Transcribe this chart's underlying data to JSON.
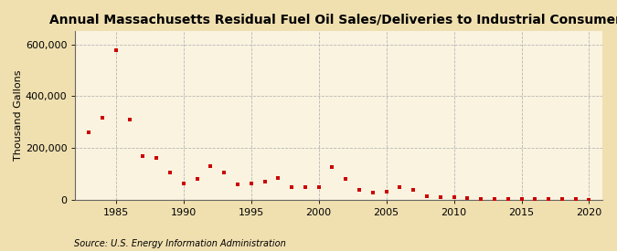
{
  "title": "Annual Massachusetts Residual Fuel Oil Sales/Deliveries to Industrial Consumers",
  "ylabel": "Thousand Gallons",
  "source": "Source: U.S. Energy Information Administration",
  "background_color": "#f0e0b0",
  "plot_background_color": "#faf3e0",
  "marker_color": "#cc0000",
  "years": [
    1983,
    1984,
    1985,
    1986,
    1987,
    1988,
    1989,
    1990,
    1991,
    1992,
    1993,
    1994,
    1995,
    1996,
    1997,
    1998,
    1999,
    2000,
    2001,
    2002,
    2003,
    2004,
    2005,
    2006,
    2007,
    2008,
    2009,
    2010,
    2011,
    2012,
    2013,
    2014,
    2015,
    2016,
    2017,
    2018,
    2019,
    2020
  ],
  "values": [
    262000,
    315000,
    578000,
    310000,
    168000,
    162000,
    105000,
    62000,
    80000,
    130000,
    105000,
    60000,
    65000,
    72000,
    85000,
    50000,
    48000,
    48000,
    125000,
    80000,
    40000,
    28000,
    32000,
    48000,
    38000,
    15000,
    10000,
    12000,
    8000,
    5000,
    5000,
    4000,
    4000,
    4000,
    3000,
    3000,
    2000,
    1000
  ],
  "xlim": [
    1982,
    2021
  ],
  "ylim": [
    0,
    650000
  ],
  "yticks": [
    0,
    200000,
    400000,
    600000
  ],
  "xticks": [
    1985,
    1990,
    1995,
    2000,
    2005,
    2010,
    2015,
    2020
  ],
  "grid_color": "#b0b0b0",
  "title_fontsize": 10,
  "label_fontsize": 8,
  "tick_fontsize": 8,
  "source_fontsize": 7
}
